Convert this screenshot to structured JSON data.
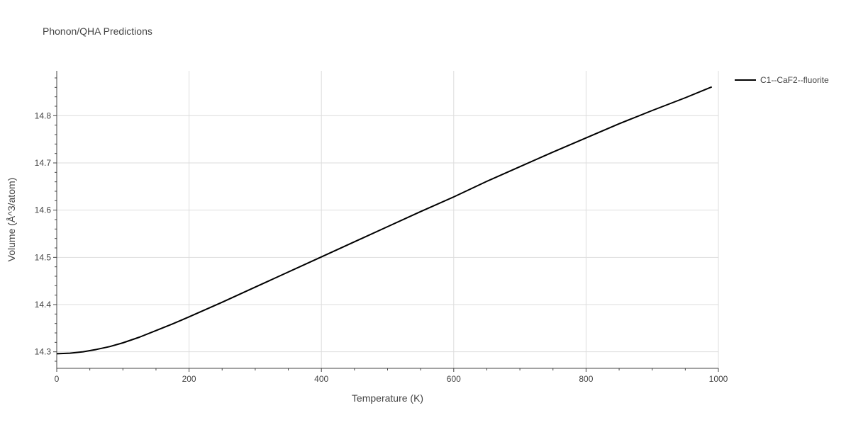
{
  "chart_data": {
    "type": "line",
    "title": "Phonon/QHA Predictions",
    "xlabel": "Temperature (K)",
    "ylabel": "Volume (Å^3/atom)",
    "xlim": [
      0,
      1000
    ],
    "ylim": [
      14.265,
      14.895
    ],
    "xticks": [
      0,
      200,
      400,
      600,
      800,
      1000
    ],
    "yticks": [
      14.3,
      14.4,
      14.5,
      14.6,
      14.7,
      14.8
    ],
    "xtick_labels": [
      "0",
      "200",
      "400",
      "600",
      "800",
      "1000"
    ],
    "ytick_labels": [
      "14.3",
      "14.4",
      "14.5",
      "14.6",
      "14.7",
      "14.8"
    ],
    "grid": true,
    "legend_position": "top-right",
    "series": [
      {
        "name": "C1--CaF2--fluorite",
        "color": "#000000",
        "x": [
          0,
          20,
          40,
          60,
          80,
          100,
          125,
          150,
          175,
          200,
          250,
          300,
          350,
          400,
          450,
          500,
          550,
          600,
          650,
          700,
          750,
          800,
          850,
          900,
          950,
          990
        ],
        "y": [
          14.296,
          14.297,
          14.3,
          14.305,
          14.311,
          14.319,
          14.331,
          14.345,
          14.359,
          14.374,
          14.405,
          14.437,
          14.469,
          14.501,
          14.533,
          14.565,
          14.597,
          14.628,
          14.661,
          14.692,
          14.723,
          14.753,
          14.783,
          14.811,
          14.838,
          14.861
        ]
      }
    ]
  }
}
